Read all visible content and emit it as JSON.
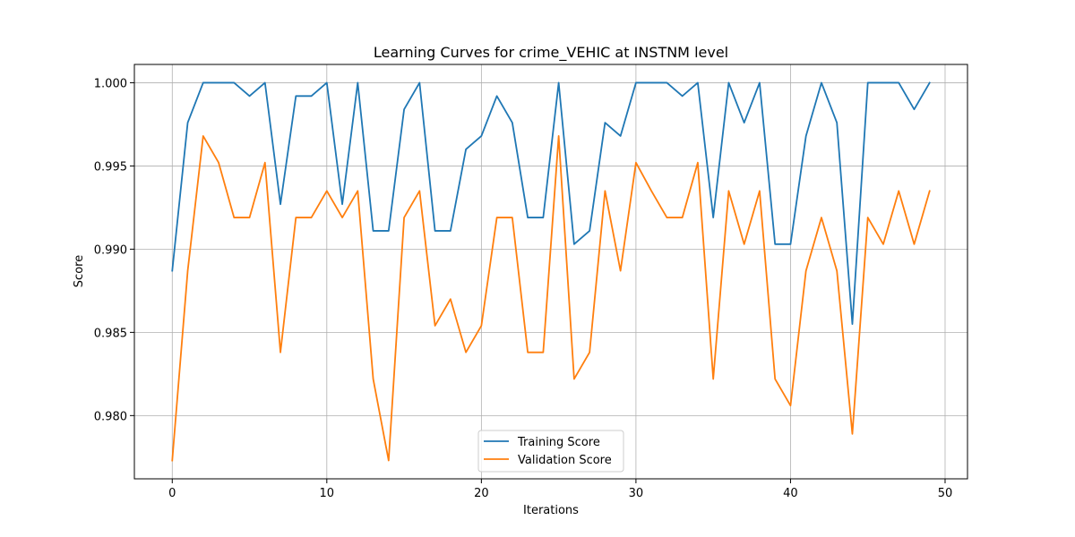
{
  "chart_data": {
    "type": "line",
    "title": "Learning Curves for crime_VEHIC at INSTNM level",
    "xlabel": "Iterations",
    "ylabel": "Score",
    "xlim": [
      -2.45,
      51.45
    ],
    "ylim": [
      0.9762,
      1.0011
    ],
    "xticks": [
      0,
      10,
      20,
      30,
      40,
      50
    ],
    "yticks": [
      0.98,
      0.985,
      0.99,
      0.995,
      1.0
    ],
    "ytick_labels": [
      "0.980",
      "0.985",
      "0.990",
      "0.995",
      "1.000"
    ],
    "grid": true,
    "legend_position": "bottom-center",
    "x": [
      0,
      1,
      2,
      3,
      4,
      5,
      6,
      7,
      8,
      9,
      10,
      11,
      12,
      13,
      14,
      15,
      16,
      17,
      18,
      19,
      20,
      21,
      22,
      23,
      24,
      25,
      26,
      27,
      28,
      29,
      30,
      31,
      32,
      33,
      34,
      35,
      36,
      37,
      38,
      39,
      40,
      41,
      42,
      43,
      44,
      45,
      46,
      47,
      48,
      49
    ],
    "series": [
      {
        "name": "Training Score",
        "color": "#1f77b4",
        "values": [
          0.9887,
          0.9976,
          1.0,
          1.0,
          1.0,
          0.9992,
          1.0,
          0.9927,
          0.9992,
          0.9992,
          1.0,
          0.9927,
          1.0,
          0.9911,
          0.9911,
          0.9984,
          1.0,
          0.9911,
          0.9911,
          0.996,
          0.9968,
          0.9992,
          0.9976,
          0.9919,
          0.9919,
          1.0,
          0.9903,
          0.9911,
          0.9976,
          0.9968,
          1.0,
          1.0,
          1.0,
          0.9992,
          1.0,
          0.9919,
          1.0,
          0.9976,
          1.0,
          0.9903,
          0.9903,
          0.9968,
          1.0,
          0.9976,
          0.9855,
          1.0,
          1.0,
          1.0,
          0.9984,
          1.0
        ]
      },
      {
        "name": "Validation Score",
        "color": "#ff7f0e",
        "values": [
          0.9773,
          0.9887,
          0.9968,
          0.9952,
          0.9919,
          0.9919,
          0.9952,
          0.9838,
          0.9919,
          0.9919,
          0.9935,
          0.9919,
          0.9935,
          0.9822,
          0.9773,
          0.9919,
          0.9935,
          0.9854,
          0.987,
          0.9838,
          0.9854,
          0.9919,
          0.9919,
          0.9838,
          0.9838,
          0.9968,
          0.9822,
          0.9838,
          0.9935,
          0.9887,
          0.9952,
          0.9935,
          0.9919,
          0.9919,
          0.9952,
          0.9822,
          0.9935,
          0.9903,
          0.9935,
          0.9822,
          0.9806,
          0.9887,
          0.9919,
          0.9887,
          0.9789,
          0.9919,
          0.9903,
          0.9935,
          0.9903,
          0.9935
        ]
      }
    ]
  }
}
